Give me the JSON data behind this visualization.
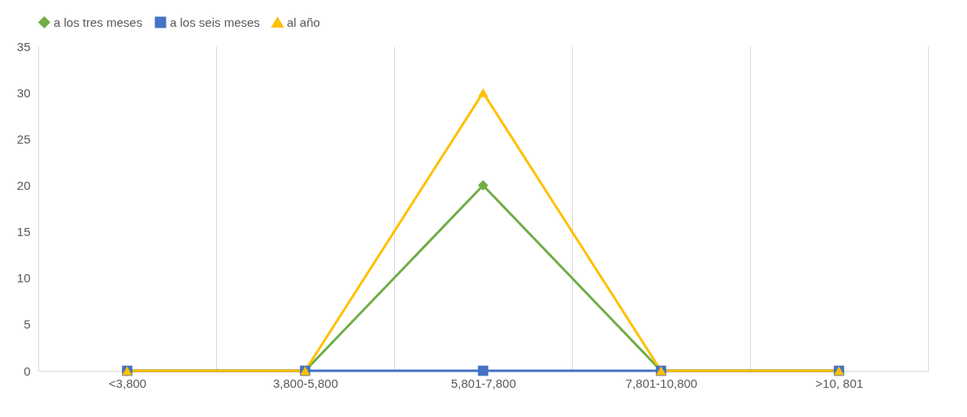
{
  "chart_data": {
    "type": "line",
    "categories": [
      "<3,800",
      "3,800-5,800",
      "5,801-7,800",
      "7,801-10,800",
      ">10, 801"
    ],
    "series": [
      {
        "name": "a los tres meses",
        "color": "#70ad47",
        "marker": "diamond",
        "values": [
          0,
          0,
          20,
          0,
          0
        ]
      },
      {
        "name": "a los seis meses",
        "color": "#4472c4",
        "marker": "square",
        "values": [
          0,
          0,
          0,
          0,
          0
        ]
      },
      {
        "name": "al año",
        "color": "#ffc000",
        "marker": "triangle",
        "values": [
          0,
          0,
          30,
          0,
          0
        ]
      }
    ],
    "ylim": [
      0,
      35
    ],
    "yticks": [
      0,
      5,
      10,
      15,
      20,
      25,
      30,
      35
    ],
    "grid": "x",
    "legend": "top",
    "line_style": "solid"
  }
}
